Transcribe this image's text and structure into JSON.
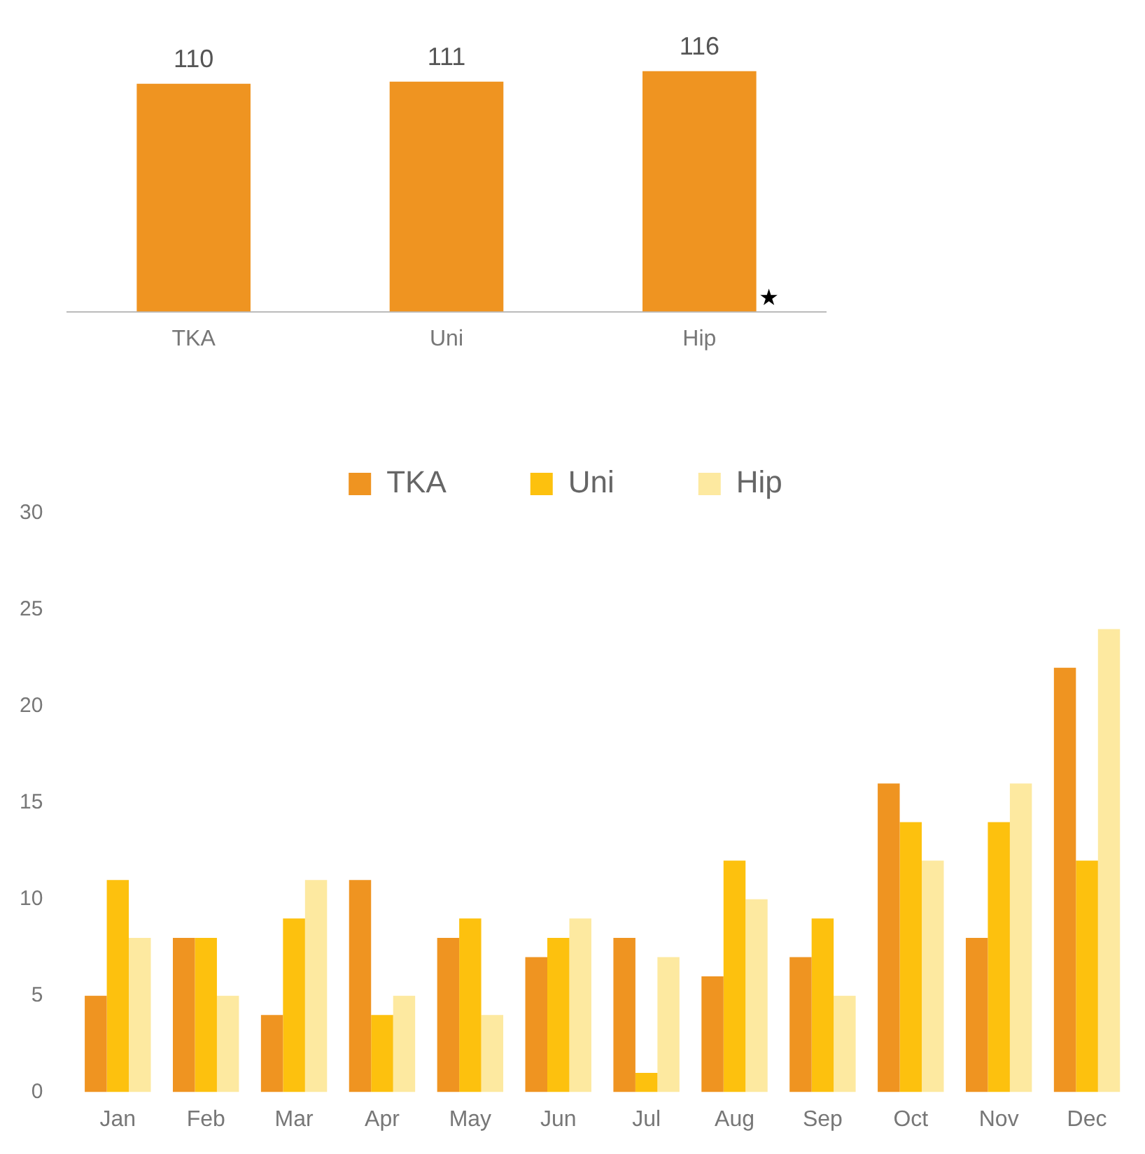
{
  "chart_data": [
    {
      "type": "bar",
      "categories": [
        "TKA",
        "Uni",
        "Hip"
      ],
      "values": [
        110,
        111,
        116
      ],
      "color": "#ef9421",
      "data_labels": true,
      "tick_labels": "x",
      "annotations": [
        "★"
      ]
    },
    {
      "type": "bar",
      "categories": [
        "Jan",
        "Feb",
        "Mar",
        "Apr",
        "May",
        "Jun",
        "Jul",
        "Aug",
        "Sep",
        "Oct",
        "Nov",
        "Dec"
      ],
      "series": [
        {
          "name": "TKA",
          "color": "#ef9421",
          "values": [
            5,
            8,
            4,
            11,
            8,
            7,
            8,
            6,
            7,
            16,
            8,
            22
          ]
        },
        {
          "name": "Uni",
          "color": "#fdc10e",
          "values": [
            11,
            8,
            9,
            4,
            9,
            8,
            1,
            12,
            9,
            14,
            14,
            12
          ]
        },
        {
          "name": "Hip",
          "color": "#fde9a0",
          "values": [
            8,
            5,
            11,
            5,
            4,
            9,
            7,
            10,
            5,
            12,
            16,
            24
          ]
        }
      ],
      "ylim": [
        0,
        30
      ],
      "yticks": [
        0,
        5,
        10,
        15,
        20,
        25,
        30
      ],
      "legend": "top"
    }
  ]
}
